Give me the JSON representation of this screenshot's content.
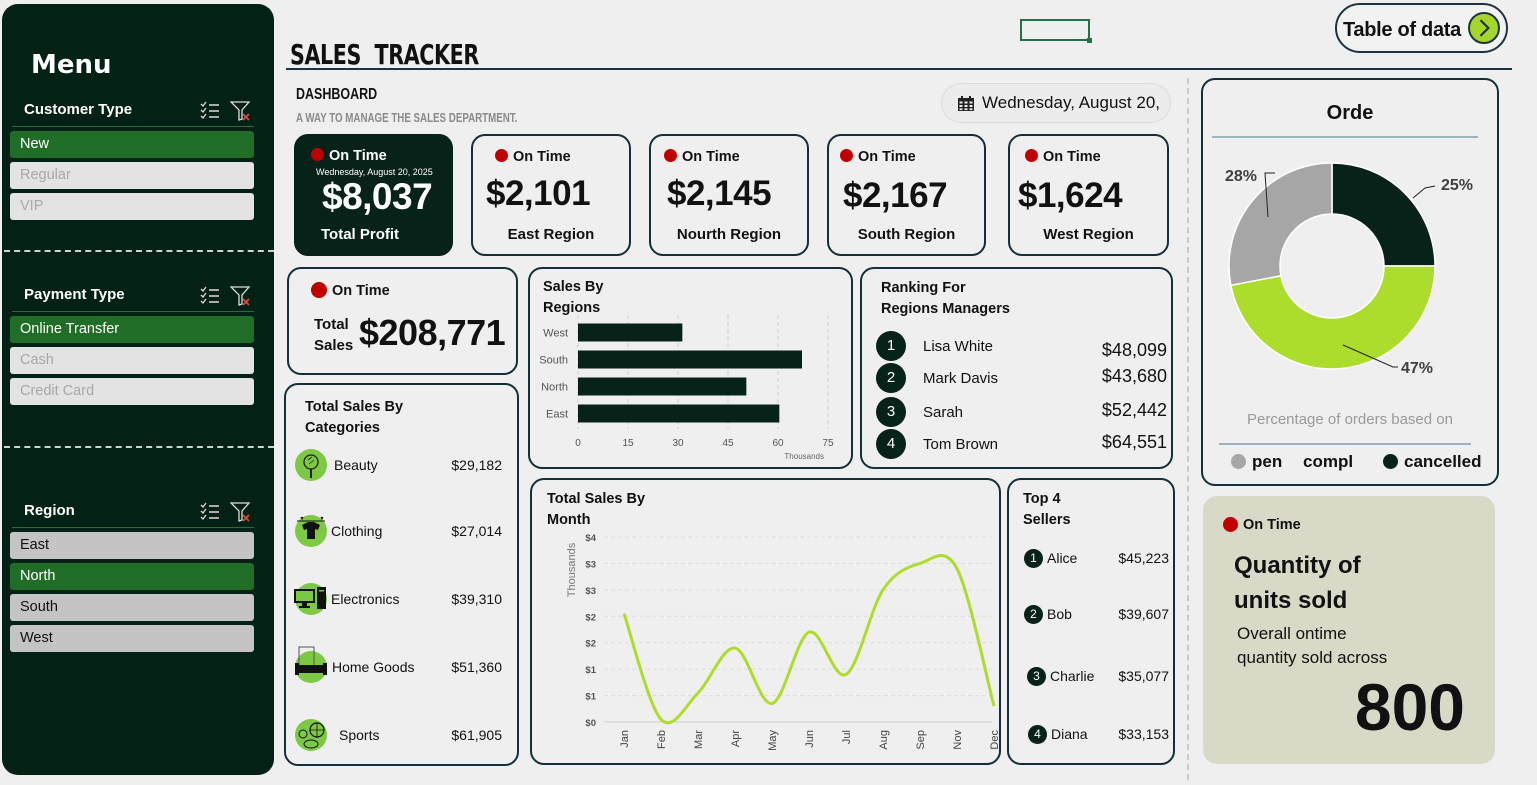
{
  "sidebar": {
    "title": "Menu",
    "slicers": [
      {
        "title": "Customer Type",
        "items": [
          {
            "label": "New",
            "state": "selected"
          },
          {
            "label": "Regular",
            "state": "unavailable"
          },
          {
            "label": "VIP",
            "state": "unavailable"
          }
        ]
      },
      {
        "title": "Payment Type",
        "items": [
          {
            "label": "Online Transfer",
            "state": "selected"
          },
          {
            "label": "Cash",
            "state": "unavailable"
          },
          {
            "label": "Credit Card",
            "state": "unavailable"
          }
        ]
      },
      {
        "title": "Region",
        "items": [
          {
            "label": "East",
            "state": "available"
          },
          {
            "label": "North",
            "state": "selected"
          },
          {
            "label": "South",
            "state": "available"
          },
          {
            "label": "West",
            "state": "available"
          }
        ]
      }
    ],
    "icons": {
      "multi_select": "multi-select-icon",
      "clear_filter": "clear-filter-icon"
    }
  },
  "header": {
    "title": "SALES  TRACKER",
    "section": "DASHBOARD",
    "subtitle": "A WAY TO MANAGE THE SALES DEPARTMENT.",
    "table_button": "Table of data",
    "date": "Wednesday, August 20,"
  },
  "status_label": "On Time",
  "kpis": {
    "profit": {
      "date": "Wednesday, August 20, 2025",
      "value": "$8,037",
      "label": "Total Profit"
    },
    "regions": [
      {
        "value": "$2,101",
        "label": "East Region"
      },
      {
        "value": "$2,145",
        "label": "Nourth Region"
      },
      {
        "value": "$2,167",
        "label": "South Region"
      },
      {
        "value": "$1,624",
        "label": "West Region"
      }
    ],
    "total_sales": {
      "label_1": "Total",
      "label_2": "Sales",
      "value": "$208,771"
    }
  },
  "categories": {
    "title_1": "Total Sales By",
    "title_2": "Categories",
    "items": [
      {
        "name": "Beauty",
        "value": "$29,182",
        "icon": "mirror-icon"
      },
      {
        "name": "Clothing",
        "value": "$27,014",
        "icon": "shirt-icon"
      },
      {
        "name": "Electronics",
        "value": "$39,310",
        "icon": "computer-icon"
      },
      {
        "name": "Home Goods",
        "value": "$51,360",
        "icon": "sofa-icon"
      },
      {
        "name": "Sports",
        "value": "$61,905",
        "icon": "sports-balls-icon"
      }
    ]
  },
  "managers": {
    "title_1": "Ranking For",
    "title_2": "Regions Managers",
    "items": [
      {
        "rank": "1",
        "name": "Lisa White",
        "value": "$48,099"
      },
      {
        "rank": "2",
        "name": "Mark Davis",
        "value": "$43,680"
      },
      {
        "rank": "3",
        "name": "Sarah",
        "value": "$52,442"
      },
      {
        "rank": "4",
        "name": "Tom Brown",
        "value": "$64,551"
      }
    ]
  },
  "sellers": {
    "title_1": "Top 4",
    "title_2": "Sellers",
    "items": [
      {
        "rank": "1",
        "name": "Alice",
        "value": "$45,223"
      },
      {
        "rank": "2",
        "name": "Bob",
        "value": "$39,607"
      },
      {
        "rank": "3",
        "name": "Charlie",
        "value": "$35,077"
      },
      {
        "rank": "4",
        "name": "Diana",
        "value": "$33,153"
      }
    ]
  },
  "quantity": {
    "title_1": "Quantity of",
    "title_2": "units sold",
    "desc_1": "Overall ontime",
    "desc_2": "quantity sold across",
    "value": "800"
  },
  "colors": {
    "dark": "#072218",
    "lime": "#acdc2c",
    "gray": "#a6a6a6",
    "status_red": "#c00000",
    "selected_green": "#1f6d26"
  },
  "chart_data": [
    {
      "type": "bar",
      "title_1": "Sales By",
      "title_2": "Regions",
      "categories": [
        "West",
        "South",
        "North",
        "East"
      ],
      "values": [
        31.3,
        67.2,
        50.5,
        60.4
      ],
      "xlabel": "Thousands",
      "xlim": [
        0,
        75
      ],
      "xticks": [
        "0",
        "15",
        "30",
        "45",
        "60",
        "75"
      ],
      "grid": true
    },
    {
      "type": "line",
      "title_1": "Total Sales By",
      "title_2": "Month",
      "categories": [
        "Jan",
        "Feb",
        "Mar",
        "Apr",
        "May",
        "Jun",
        "Jul",
        "Aug",
        "Sep",
        "Nov",
        "Dec"
      ],
      "values": [
        2.05,
        0.05,
        0.55,
        1.4,
        0.35,
        1.7,
        0.9,
        2.5,
        3.0,
        2.9,
        0.3
      ],
      "ylabel": "Thousands",
      "ylim": [
        0,
        3.5
      ],
      "yticks": [
        "$0",
        "$1",
        "$1",
        "$2",
        "$2",
        "$3",
        "$3",
        "$4"
      ],
      "grid": true
    },
    {
      "type": "pie",
      "title": "Orde",
      "caption": "Percentage of orders based on",
      "series": [
        {
          "name": "cancelled",
          "value": 25,
          "label": "25%"
        },
        {
          "name": "compl",
          "value": 47,
          "label": "47%"
        },
        {
          "name": "pen",
          "value": 28,
          "label": "28%"
        }
      ],
      "legend": [
        "pen",
        "compl",
        "cancelled"
      ],
      "legend_position": "bottom"
    }
  ]
}
